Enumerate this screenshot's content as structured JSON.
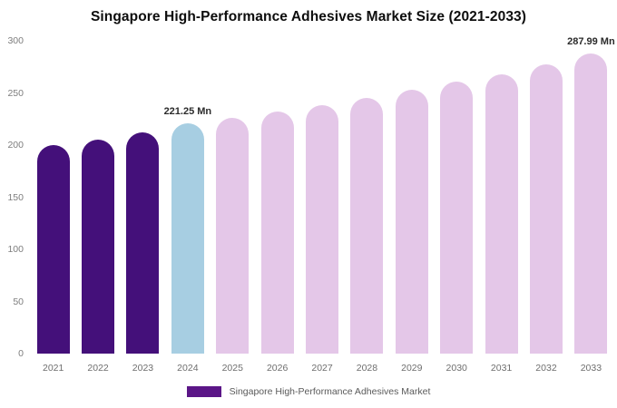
{
  "title": "Singapore High-Performance Adhesives Market Size (2021-2033)",
  "legend": {
    "label": "Singapore High-Performance Adhesives Market",
    "swatch_color": "#5b1687"
  },
  "colors": {
    "bar_dark_purple": "#44107a",
    "bar_light_blue": "#a7cee2",
    "bar_light_pink": "#e4c7e8",
    "title_text": "#0d0d0d",
    "axis_text": "#7d7d7d",
    "background": "#ffffff"
  },
  "chart_data": {
    "type": "bar",
    "title": "Singapore High-Performance Adhesives Market Size (2021-2033)",
    "series_name": "Singapore High-Performance Adhesives Market",
    "categories": [
      "2021",
      "2022",
      "2023",
      "2024",
      "2025",
      "2026",
      "2027",
      "2028",
      "2029",
      "2030",
      "2031",
      "2032",
      "2033"
    ],
    "values": [
      200,
      205,
      212,
      221.25,
      226,
      232,
      238,
      245,
      253,
      261,
      268,
      277,
      287.99
    ],
    "bar_colors": [
      "#44107a",
      "#44107a",
      "#44107a",
      "#a7cee2",
      "#e4c7e8",
      "#e4c7e8",
      "#e4c7e8",
      "#e4c7e8",
      "#e4c7e8",
      "#e4c7e8",
      "#e4c7e8",
      "#e4c7e8",
      "#e4c7e8"
    ],
    "annotations": [
      {
        "category": "2024",
        "text": "221.25 Mn"
      },
      {
        "category": "2033",
        "text": "287.99 Mn"
      }
    ],
    "xlabel": "",
    "ylabel": "",
    "ylim": [
      0,
      300
    ],
    "yticks": [
      0,
      50,
      100,
      150,
      200,
      250,
      300
    ],
    "grid": false,
    "legend_position": "bottom"
  }
}
